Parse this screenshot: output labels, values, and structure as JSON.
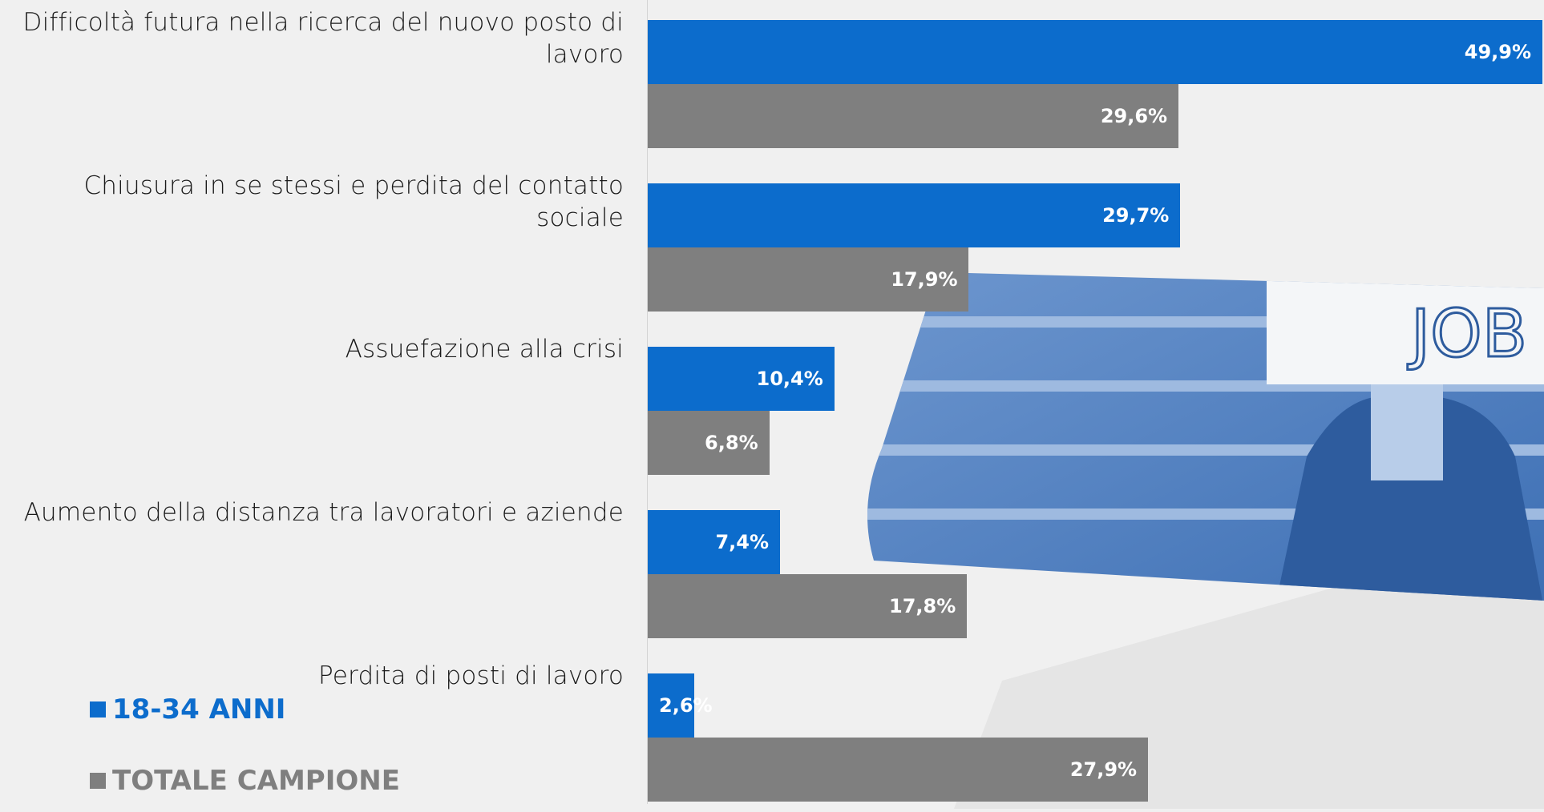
{
  "colors": {
    "series_1": "#0c6ccc",
    "series_2": "#7f7f7f",
    "background": "#f0f0f0",
    "photo_tint": "#4f80c0"
  },
  "photo": {
    "sign_text": "JOB",
    "subject": "woman-holding-job-sign-photo"
  },
  "chart_data": {
    "type": "bar",
    "orientation": "horizontal",
    "categories": [
      "Difficoltà futura nella ricerca del nuovo posto di lavoro",
      "Chiusura in se stessi e perdita del contatto sociale",
      "Assuefazione alla crisi",
      "Aumento della distanza tra lavoratori e aziende",
      "Perdita di posti di lavoro"
    ],
    "series": [
      {
        "name": "18-34 ANNI",
        "values": [
          49.9,
          29.7,
          10.4,
          7.4,
          2.6
        ],
        "labels": [
          "49,9%",
          "29,7%",
          "10,4%",
          "7,4%",
          "2,6%"
        ]
      },
      {
        "name": "TOTALE CAMPIONE",
        "values": [
          29.6,
          17.9,
          6.8,
          17.8,
          27.9
        ],
        "labels": [
          "29,6%",
          "17,9%",
          "6,8%",
          "17,8%",
          "27,9%"
        ]
      }
    ],
    "xlim": [
      0,
      50
    ],
    "grid": false,
    "legend": "bottom-left"
  }
}
